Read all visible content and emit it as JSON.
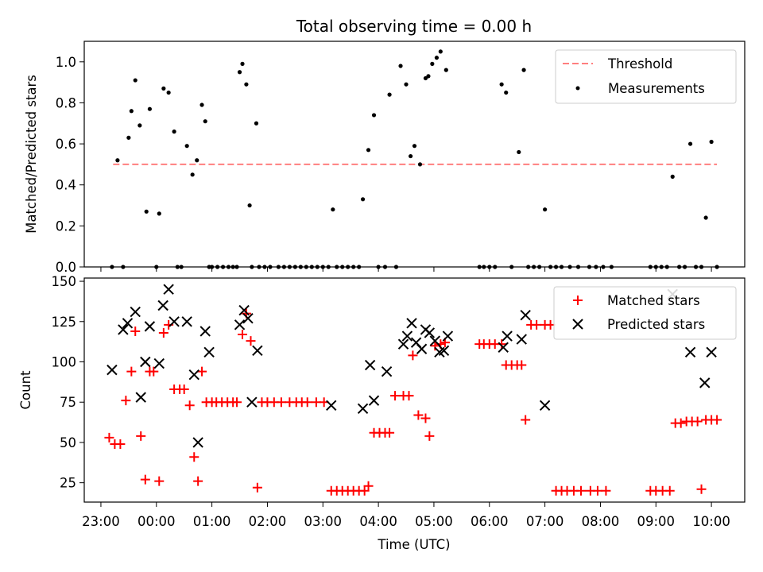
{
  "chart_data": {
    "type": "scatter",
    "title": "Total observing time = 0.00 h",
    "xlabel": "Time (UTC)",
    "x_ticks": [
      "23:00",
      "00:00",
      "01:00",
      "02:00",
      "03:00",
      "04:00",
      "05:00",
      "06:00",
      "07:00",
      "08:00",
      "09:00",
      "10:00"
    ],
    "x_range_hours": [
      -1.3,
      10.6
    ],
    "grid": false,
    "panels": [
      {
        "ylabel": "Matched/Predicted stars",
        "ylim": [
          0,
          1.1
        ],
        "y_ticks": [
          "0.0",
          "0.2",
          "0.4",
          "0.6",
          "0.8",
          "1.0"
        ],
        "legend_position": "top-right",
        "series": [
          {
            "name": "Threshold",
            "kind": "dashed-line",
            "color": "#ff7f7f",
            "x": [
              -0.78,
              10.1
            ],
            "y": [
              0.5,
              0.5
            ]
          },
          {
            "name": "Measurements",
            "kind": "dot",
            "color": "#000000",
            "x": [
              -0.8,
              -0.7,
              -0.6,
              -0.5,
              -0.45,
              -0.38,
              -0.3,
              -0.18,
              -0.12,
              0.0,
              0.05,
              0.13,
              0.22,
              0.32,
              0.38,
              0.45,
              0.55,
              0.65,
              0.73,
              0.82,
              0.88,
              0.95,
              1.0,
              1.1,
              1.2,
              1.3,
              1.38,
              1.45,
              1.5,
              1.55,
              1.62,
              1.68,
              1.72,
              1.8,
              1.85,
              1.95,
              2.05,
              2.2,
              2.3,
              2.4,
              2.5,
              2.6,
              2.7,
              2.8,
              2.9,
              3.0,
              3.1,
              3.18,
              3.25,
              3.35,
              3.45,
              3.55,
              3.65,
              3.72,
              3.82,
              3.92,
              4.0,
              4.12,
              4.2,
              4.32,
              4.4,
              4.5,
              4.58,
              4.65,
              4.75,
              4.85,
              4.9,
              4.97,
              5.05,
              5.12,
              5.22,
              5.82,
              5.9,
              6.0,
              6.1,
              6.22,
              6.3,
              6.4,
              6.53,
              6.62,
              6.7,
              6.8,
              6.9,
              7.0,
              7.1,
              7.2,
              7.3,
              7.45,
              7.6,
              7.8,
              7.92,
              8.05,
              8.2,
              8.9,
              9.0,
              9.1,
              9.2,
              9.3,
              9.42,
              9.52,
              9.62,
              9.72,
              9.82,
              9.9,
              10.0,
              10.1
            ],
            "y": [
              0.0,
              0.52,
              0.0,
              0.63,
              0.76,
              0.91,
              0.69,
              0.27,
              0.77,
              0.0,
              0.26,
              0.87,
              0.85,
              0.66,
              0.0,
              0.0,
              0.59,
              0.45,
              0.52,
              0.79,
              0.71,
              0.0,
              0.0,
              0.0,
              0.0,
              0.0,
              0.0,
              0.0,
              0.95,
              0.99,
              0.89,
              0.3,
              0.0,
              0.7,
              0.0,
              0.0,
              0.0,
              0.0,
              0.0,
              0.0,
              0.0,
              0.0,
              0.0,
              0.0,
              0.0,
              0.0,
              0.0,
              0.28,
              0.0,
              0.0,
              0.0,
              0.0,
              0.0,
              0.33,
              0.57,
              0.74,
              0.0,
              0.0,
              0.84,
              0.0,
              0.98,
              0.89,
              0.54,
              0.59,
              0.5,
              0.92,
              0.93,
              0.99,
              1.02,
              1.05,
              0.96,
              0.0,
              0.0,
              0.0,
              0.0,
              0.89,
              0.85,
              0.0,
              0.56,
              0.96,
              0.0,
              0.0,
              0.0,
              0.28,
              0.0,
              0.0,
              0.0,
              0.0,
              0.0,
              0.0,
              0.0,
              0.0,
              0.0,
              0.0,
              0.0,
              0.0,
              0.0,
              0.44,
              0.0,
              0.0,
              0.6,
              0.0,
              0.0,
              0.24,
              0.61,
              0.0
            ]
          }
        ]
      },
      {
        "ylabel": "Count",
        "ylim": [
          13,
          152
        ],
        "y_ticks": [
          "25",
          "50",
          "75",
          "100",
          "125",
          "150"
        ],
        "legend_position": "top-right",
        "series": [
          {
            "name": "Matched stars",
            "kind": "plus",
            "color": "#ff0000",
            "x": [
              -0.85,
              -0.75,
              -0.65,
              -0.55,
              -0.45,
              -0.38,
              -0.28,
              -0.2,
              -0.12,
              -0.05,
              0.05,
              0.13,
              0.22,
              0.32,
              0.42,
              0.5,
              0.6,
              0.68,
              0.75,
              0.82,
              0.9,
              1.0,
              1.08,
              1.18,
              1.28,
              1.38,
              1.45,
              1.55,
              1.62,
              1.7,
              1.82,
              1.9,
              2.0,
              2.12,
              2.25,
              2.4,
              2.52,
              2.62,
              2.72,
              2.88,
              3.02,
              3.15,
              3.25,
              3.35,
              3.45,
              3.55,
              3.65,
              3.75,
              3.82,
              3.92,
              4.02,
              4.12,
              4.2,
              4.3,
              4.45,
              4.55,
              4.62,
              4.72,
              4.85,
              4.92,
              5.02,
              5.12,
              5.2,
              5.82,
              5.9,
              6.0,
              6.1,
              6.22,
              6.3,
              6.4,
              6.5,
              6.58,
              6.65,
              6.75,
              6.85,
              7.0,
              7.1,
              7.2,
              7.3,
              7.4,
              7.52,
              7.65,
              7.82,
              7.95,
              8.1,
              8.9,
              9.0,
              9.12,
              9.25,
              9.35,
              9.45,
              9.55,
              9.65,
              9.75,
              9.82,
              9.9,
              10.0,
              10.1
            ],
            "y": [
              53,
              49,
              49,
              76,
              94,
              119,
              54,
              27,
              94,
              94,
              26,
              118,
              123,
              83,
              83,
              83,
              73,
              41,
              26,
              94,
              75,
              75,
              75,
              75,
              75,
              75,
              75,
              117,
              130,
              113,
              22,
              75,
              75,
              75,
              75,
              75,
              75,
              75,
              75,
              75,
              75,
              20,
              20,
              20,
              20,
              20,
              20,
              20,
              23,
              56,
              56,
              56,
              56,
              79,
              79,
              79,
              104,
              67,
              65,
              54,
              110,
              111,
              112,
              111,
              111,
              111,
              111,
              111,
              98,
              98,
              98,
              98,
              64,
              123,
              123,
              123,
              123,
              20,
              20,
              20,
              20,
              20,
              20,
              20,
              20,
              20,
              20,
              20,
              20,
              62,
              62,
              63,
              63,
              63,
              21,
              64,
              64,
              64
            ]
          },
          {
            "name": "Predicted stars",
            "kind": "x",
            "color": "#000000",
            "x": [
              -0.8,
              -0.6,
              -0.52,
              -0.38,
              -0.28,
              -0.2,
              -0.12,
              0.05,
              0.12,
              0.22,
              0.32,
              0.55,
              0.68,
              0.75,
              0.88,
              0.95,
              1.5,
              1.58,
              1.65,
              1.72,
              1.82,
              3.15,
              3.72,
              3.85,
              3.92,
              4.15,
              4.45,
              4.52,
              4.6,
              4.68,
              4.78,
              4.85,
              4.92,
              5.02,
              5.1,
              5.18,
              5.25,
              6.25,
              6.32,
              6.58,
              6.65,
              7.0,
              9.3,
              9.62,
              9.88,
              10.0
            ],
            "y": [
              95,
              120,
              124,
              131,
              78,
              100,
              122,
              99,
              135,
              145,
              125,
              125,
              92,
              50,
              119,
              106,
              123,
              132,
              127,
              75,
              107,
              73,
              71,
              98,
              76,
              94,
              111,
              116,
              124,
              112,
              108,
              120,
              118,
              113,
              106,
              107,
              116,
              109,
              116,
              114,
              129,
              73,
              142,
              106,
              87,
              106
            ]
          }
        ]
      }
    ]
  }
}
